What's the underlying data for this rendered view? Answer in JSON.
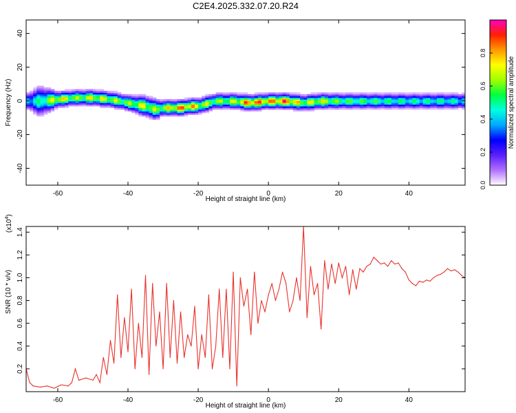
{
  "title": "C2E4.2025.332.07.20.R24",
  "chart_data": [
    {
      "type": "heatmap",
      "xlabel": "Height of straight line (km)",
      "ylabel": "Frequency (Hz)",
      "xlim": [
        -69,
        56
      ],
      "ylim": [
        -50,
        48
      ],
      "x_ticks": [
        "-60",
        "-40",
        "-20",
        "0",
        "20",
        "40"
      ],
      "y_ticks": [
        "40",
        "20",
        "0",
        "-20",
        "-40"
      ],
      "colorbar": {
        "label": "Normalized spectral amplitude",
        "ticks": [
          "0.0",
          "0.2",
          "0.4",
          "0.6",
          "0.8"
        ],
        "range": [
          0,
          1
        ],
        "colors": [
          "#ffffff",
          "#b070ff",
          "#5a1fff",
          "#0000ff",
          "#00a8ff",
          "#00ffe0",
          "#00ff40",
          "#a0ff00",
          "#ffff00",
          "#ff9900",
          "#ff2000",
          "#ff00c0"
        ]
      },
      "ridge": {
        "x": [
          -69,
          -65,
          -60,
          -55,
          -50,
          -45,
          -40,
          -35,
          -32,
          -30,
          -25,
          -22,
          -20,
          -15,
          -10,
          -5,
          0,
          5,
          10,
          15,
          20,
          30,
          40,
          50,
          56
        ],
        "frequency": [
          0,
          0,
          1,
          2,
          2,
          1,
          -1,
          -3,
          -5,
          -4,
          -4,
          -3,
          -3,
          0,
          0,
          -1,
          0,
          0,
          -1,
          0,
          0,
          0,
          0,
          0,
          0
        ],
        "half_width_hz": [
          3,
          6,
          3,
          3,
          3,
          3,
          3,
          4,
          4,
          3,
          3,
          3,
          3,
          3,
          3,
          3,
          3,
          3,
          3,
          3,
          3,
          3,
          3,
          3,
          3
        ],
        "peak_amplitude": [
          0.45,
          0.55,
          0.85,
          0.7,
          0.8,
          0.75,
          0.7,
          0.8,
          0.7,
          0.75,
          0.95,
          0.9,
          0.8,
          0.7,
          0.75,
          1.0,
          0.9,
          1.0,
          0.75,
          0.8,
          0.65,
          0.6,
          0.55,
          0.55,
          0.5
        ]
      }
    },
    {
      "type": "line",
      "xlabel": "Height of straight line (km)",
      "ylabel": "SNR (10 * v/v)",
      "scale_label": "(x10",
      "scale_exponent": "4",
      "scale_close": ")",
      "xlim": [
        -69,
        56
      ],
      "ylim": [
        0,
        1.45
      ],
      "x_ticks": [
        "-60",
        "-40",
        "-20",
        "0",
        "20",
        "40"
      ],
      "y_ticks": [
        "1.4",
        "1.2",
        "1.0",
        "0.8",
        "0.6",
        "0.4",
        "0.2"
      ],
      "color": "#e8302b",
      "series": [
        {
          "x": [
            -69,
            -68,
            -67,
            -65,
            -63,
            -61,
            -59,
            -57,
            -56,
            -55,
            -54,
            -52,
            -50,
            -49,
            -48,
            -47,
            -46,
            -45,
            -44,
            -43,
            -42,
            -41,
            -40,
            -39,
            -38,
            -37,
            -36,
            -35,
            -34,
            -33,
            -32,
            -31,
            -30,
            -29,
            -28,
            -27,
            -26,
            -25,
            -24,
            -23,
            -22,
            -21,
            -20,
            -19,
            -18,
            -17,
            -16,
            -15,
            -14,
            -13,
            -12,
            -11,
            -10,
            -9,
            -8,
            -7,
            -6,
            -5,
            -4,
            -3,
            -2,
            -1,
            0,
            1,
            2,
            3,
            4,
            5,
            6,
            7,
            8,
            9,
            10,
            11,
            12,
            13,
            14,
            15,
            16,
            17,
            18,
            19,
            20,
            21,
            22,
            23,
            24,
            25,
            26,
            27,
            28,
            29,
            30,
            31,
            32,
            33,
            34,
            35,
            36,
            37,
            38,
            39,
            40,
            41,
            42,
            43,
            44,
            45,
            46,
            47,
            48,
            49,
            50,
            51,
            52,
            53,
            54,
            55,
            56
          ],
          "y": [
            0.2,
            0.08,
            0.05,
            0.04,
            0.05,
            0.03,
            0.06,
            0.05,
            0.08,
            0.2,
            0.1,
            0.12,
            0.1,
            0.15,
            0.08,
            0.3,
            0.15,
            0.45,
            0.25,
            0.85,
            0.3,
            0.65,
            0.35,
            0.9,
            0.2,
            0.6,
            0.3,
            1.02,
            0.15,
            0.95,
            0.4,
            0.7,
            0.2,
            0.95,
            0.3,
            0.8,
            0.25,
            0.7,
            0.3,
            0.5,
            0.4,
            0.75,
            0.2,
            0.5,
            0.3,
            0.85,
            0.2,
            0.4,
            0.9,
            0.3,
            0.9,
            0.2,
            1.05,
            0.05,
            1.0,
            0.75,
            0.9,
            0.5,
            1.05,
            0.6,
            0.8,
            0.7,
            0.85,
            0.95,
            0.8,
            0.9,
            1.05,
            0.95,
            0.7,
            0.8,
            1.0,
            0.8,
            1.45,
            0.65,
            1.1,
            0.85,
            0.95,
            0.55,
            1.15,
            0.9,
            1.12,
            0.95,
            1.13,
            1.0,
            1.1,
            0.85,
            1.07,
            0.9,
            1.08,
            1.05,
            1.1,
            1.12,
            1.18,
            1.15,
            1.12,
            1.13,
            1.1,
            1.15,
            1.12,
            1.13,
            1.08,
            1.05,
            0.98,
            0.95,
            0.93,
            0.97,
            0.96,
            0.98,
            0.97,
            1.0,
            1.02,
            1.03,
            1.05,
            1.08,
            1.06,
            1.07,
            1.05,
            1.02,
            1.0
          ]
        }
      ]
    }
  ]
}
